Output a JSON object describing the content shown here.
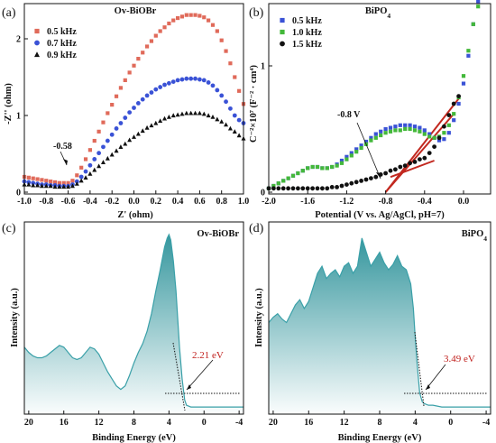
{
  "chart_data": [
    {
      "type": "scatter",
      "panel_label": "(a)",
      "title": "Ov-BiOBr",
      "xlabel": "Z' (ohm)",
      "ylabel": "-Z'' (ohm)",
      "xlim": [
        -1.0,
        1.0
      ],
      "ylim": [
        0,
        2.4
      ],
      "xticks": [
        -1.0,
        -0.8,
        -0.6,
        -0.4,
        -0.2,
        0.0,
        0.2,
        0.4,
        0.6,
        0.8,
        1.0
      ],
      "xtick_labels": [
        "-1.0",
        "-0.8",
        "-0.6",
        "-0.4",
        "-0.2",
        "0.0",
        "0.2",
        "0.4",
        "0.6",
        "0.8",
        "1.0"
      ],
      "yticks": [
        0,
        1,
        2
      ],
      "ytick_labels": [
        "0",
        "1",
        "2"
      ],
      "legend_position": "top-left",
      "annotation": "-0.58",
      "series": [
        {
          "name": "0.5 kHz",
          "color": "#e06a5a",
          "marker": "square",
          "x": [
            -1.0,
            -0.96,
            -0.92,
            -0.88,
            -0.84,
            -0.8,
            -0.76,
            -0.72,
            -0.68,
            -0.64,
            -0.6,
            -0.56,
            -0.52,
            -0.48,
            -0.44,
            -0.4,
            -0.36,
            -0.32,
            -0.28,
            -0.24,
            -0.2,
            -0.16,
            -0.12,
            -0.08,
            -0.04,
            0.0,
            0.04,
            0.08,
            0.12,
            0.16,
            0.2,
            0.24,
            0.28,
            0.32,
            0.36,
            0.4,
            0.44,
            0.48,
            0.52,
            0.56,
            0.6,
            0.64,
            0.68,
            0.72,
            0.76,
            0.8,
            0.84,
            0.88,
            0.92,
            0.96,
            1.0
          ],
          "y": [
            0.2,
            0.19,
            0.18,
            0.17,
            0.16,
            0.15,
            0.14,
            0.13,
            0.12,
            0.12,
            0.12,
            0.15,
            0.22,
            0.32,
            0.43,
            0.55,
            0.67,
            0.79,
            0.91,
            1.03,
            1.14,
            1.25,
            1.36,
            1.46,
            1.56,
            1.65,
            1.74,
            1.82,
            1.9,
            1.97,
            2.04,
            2.1,
            2.15,
            2.2,
            2.24,
            2.27,
            2.29,
            2.31,
            2.31,
            2.31,
            2.3,
            2.28,
            2.24,
            2.18,
            2.1,
            1.98,
            1.84,
            1.68,
            1.5,
            1.32,
            1.15
          ]
        },
        {
          "name": "0.7 kHz",
          "color": "#3a52d6",
          "marker": "circle",
          "x": [
            -1.0,
            -0.96,
            -0.92,
            -0.88,
            -0.84,
            -0.8,
            -0.76,
            -0.72,
            -0.68,
            -0.64,
            -0.6,
            -0.56,
            -0.52,
            -0.48,
            -0.44,
            -0.4,
            -0.36,
            -0.32,
            -0.28,
            -0.24,
            -0.2,
            -0.16,
            -0.12,
            -0.08,
            -0.04,
            0.0,
            0.04,
            0.08,
            0.12,
            0.16,
            0.2,
            0.24,
            0.28,
            0.32,
            0.36,
            0.4,
            0.44,
            0.48,
            0.52,
            0.56,
            0.6,
            0.64,
            0.68,
            0.72,
            0.76,
            0.8,
            0.84,
            0.88,
            0.92,
            0.96,
            1.0
          ],
          "y": [
            0.14,
            0.13,
            0.12,
            0.11,
            0.1,
            0.1,
            0.09,
            0.09,
            0.08,
            0.08,
            0.08,
            0.1,
            0.14,
            0.2,
            0.27,
            0.35,
            0.43,
            0.51,
            0.59,
            0.67,
            0.75,
            0.83,
            0.9,
            0.97,
            1.04,
            1.1,
            1.16,
            1.21,
            1.26,
            1.3,
            1.34,
            1.37,
            1.4,
            1.42,
            1.44,
            1.46,
            1.47,
            1.48,
            1.48,
            1.48,
            1.47,
            1.46,
            1.43,
            1.39,
            1.33,
            1.26,
            1.18,
            1.09,
            1.0,
            0.94,
            0.9
          ]
        },
        {
          "name": "0.9 kHz",
          "color": "#111111",
          "marker": "triangle",
          "x": [
            -1.0,
            -0.96,
            -0.92,
            -0.88,
            -0.84,
            -0.8,
            -0.76,
            -0.72,
            -0.68,
            -0.64,
            -0.6,
            -0.56,
            -0.52,
            -0.48,
            -0.44,
            -0.4,
            -0.36,
            -0.32,
            -0.28,
            -0.24,
            -0.2,
            -0.16,
            -0.12,
            -0.08,
            -0.04,
            0.0,
            0.04,
            0.08,
            0.12,
            0.16,
            0.2,
            0.24,
            0.28,
            0.32,
            0.36,
            0.4,
            0.44,
            0.48,
            0.52,
            0.56,
            0.6,
            0.64,
            0.68,
            0.72,
            0.76,
            0.8,
            0.84,
            0.88,
            0.92,
            0.96,
            1.0
          ],
          "y": [
            0.1,
            0.1,
            0.09,
            0.09,
            0.08,
            0.08,
            0.08,
            0.07,
            0.07,
            0.07,
            0.07,
            0.08,
            0.11,
            0.15,
            0.19,
            0.24,
            0.29,
            0.34,
            0.39,
            0.44,
            0.49,
            0.54,
            0.59,
            0.63,
            0.68,
            0.72,
            0.76,
            0.8,
            0.84,
            0.87,
            0.9,
            0.93,
            0.96,
            0.98,
            1.0,
            1.01,
            1.02,
            1.03,
            1.03,
            1.03,
            1.03,
            1.02,
            1.0,
            0.98,
            0.95,
            0.92,
            0.88,
            0.83,
            0.79,
            0.74,
            0.7
          ]
        }
      ]
    },
    {
      "type": "scatter",
      "panel_label": "(b)",
      "title": "BiPO4",
      "title_main": "BiPO",
      "title_sub": "4",
      "xlabel": "Potential (V vs. Ag/AgCl, pH=7)",
      "ylabel": "C⁻²×10⁷ (F⁻² · cm⁴)",
      "xlim": [
        -2.0,
        0.2
      ],
      "ylim": [
        0,
        1.5
      ],
      "xticks": [
        -2.0,
        -1.6,
        -1.2,
        -0.8,
        -0.4,
        0.0
      ],
      "xtick_labels": [
        "-2.0",
        "-1.6",
        "-1.2",
        "-0.8",
        "-0.4",
        "0.0"
      ],
      "yticks": [
        0,
        1
      ],
      "ytick_labels": [
        "0",
        "1"
      ],
      "legend_position": "top-left",
      "annotation": "-0.8 V",
      "series": [
        {
          "name": "0.5 kHz",
          "color": "#3a52d6",
          "marker": "square",
          "x": [
            -2.0,
            -1.95,
            -1.9,
            -1.85,
            -1.8,
            -1.75,
            -1.7,
            -1.65,
            -1.6,
            -1.55,
            -1.5,
            -1.45,
            -1.4,
            -1.35,
            -1.3,
            -1.25,
            -1.2,
            -1.15,
            -1.1,
            -1.05,
            -1.0,
            -0.95,
            -0.9,
            -0.85,
            -0.8,
            -0.75,
            -0.7,
            -0.65,
            -0.6,
            -0.55,
            -0.5,
            -0.45,
            -0.4,
            -0.35,
            -0.3,
            -0.25,
            -0.2,
            -0.15,
            -0.1,
            -0.05,
            0.0,
            0.05,
            0.1,
            0.15
          ],
          "y": [
            0.03,
            0.05,
            0.07,
            0.09,
            0.11,
            0.13,
            0.15,
            0.17,
            0.19,
            0.2,
            0.2,
            0.19,
            0.19,
            0.2,
            0.22,
            0.25,
            0.28,
            0.31,
            0.34,
            0.37,
            0.4,
            0.43,
            0.46,
            0.48,
            0.5,
            0.51,
            0.52,
            0.53,
            0.53,
            0.53,
            0.52,
            0.51,
            0.49,
            0.46,
            0.43,
            0.41,
            0.42,
            0.47,
            0.57,
            0.7,
            0.86,
            1.08,
            1.33,
            1.51
          ]
        },
        {
          "name": "1.0 kHz",
          "color": "#43b83a",
          "marker": "square",
          "x": [
            -2.0,
            -1.95,
            -1.9,
            -1.85,
            -1.8,
            -1.75,
            -1.7,
            -1.65,
            -1.6,
            -1.55,
            -1.5,
            -1.45,
            -1.4,
            -1.35,
            -1.3,
            -1.25,
            -1.2,
            -1.15,
            -1.1,
            -1.05,
            -1.0,
            -0.95,
            -0.9,
            -0.85,
            -0.8,
            -0.75,
            -0.7,
            -0.65,
            -0.6,
            -0.55,
            -0.5,
            -0.45,
            -0.4,
            -0.35,
            -0.3,
            -0.25,
            -0.2,
            -0.15,
            -0.1,
            -0.05,
            0.0,
            0.05,
            0.1,
            0.15
          ],
          "y": [
            0.03,
            0.05,
            0.07,
            0.09,
            0.11,
            0.13,
            0.15,
            0.17,
            0.19,
            0.2,
            0.2,
            0.19,
            0.19,
            0.2,
            0.21,
            0.23,
            0.26,
            0.29,
            0.32,
            0.35,
            0.38,
            0.41,
            0.43,
            0.45,
            0.47,
            0.48,
            0.49,
            0.49,
            0.5,
            0.5,
            0.49,
            0.48,
            0.46,
            0.44,
            0.43,
            0.44,
            0.47,
            0.53,
            0.62,
            0.75,
            0.92,
            1.12,
            1.33,
            1.47
          ]
        },
        {
          "name": "1.5 kHz",
          "color": "#111111",
          "marker": "circle",
          "x": [
            -2.0,
            -1.95,
            -1.9,
            -1.85,
            -1.8,
            -1.75,
            -1.7,
            -1.65,
            -1.6,
            -1.55,
            -1.5,
            -1.45,
            -1.4,
            -1.35,
            -1.3,
            -1.25,
            -1.2,
            -1.15,
            -1.1,
            -1.05,
            -1.0,
            -0.95,
            -0.9,
            -0.85,
            -0.8,
            -0.75,
            -0.7,
            -0.65,
            -0.6,
            -0.55,
            -0.5,
            -0.45,
            -0.4,
            -0.35,
            -0.3,
            -0.25,
            -0.2,
            -0.15,
            -0.1,
            -0.05
          ],
          "y": [
            0.03,
            0.03,
            0.03,
            0.03,
            0.03,
            0.03,
            0.03,
            0.03,
            0.03,
            0.03,
            0.03,
            0.03,
            0.03,
            0.04,
            0.04,
            0.05,
            0.06,
            0.07,
            0.08,
            0.09,
            0.1,
            0.11,
            0.12,
            0.14,
            0.15,
            0.17,
            0.18,
            0.2,
            0.21,
            0.23,
            0.24,
            0.26,
            0.27,
            0.31,
            0.36,
            0.43,
            0.52,
            0.61,
            0.7,
            0.76
          ]
        }
      ],
      "fit_lines": [
        {
          "color": "#c2281f",
          "x": [
            -0.8,
            -0.05
          ],
          "y": [
            0.0,
            0.74
          ]
        },
        {
          "color": "#c2281f",
          "x": [
            -0.8,
            -0.1
          ],
          "y": [
            0.0,
            0.62
          ]
        },
        {
          "color": "#c2281f",
          "x": [
            -0.75,
            -0.3
          ],
          "y": [
            0.12,
            0.25
          ]
        }
      ]
    },
    {
      "type": "area",
      "panel_label": "(c)",
      "title": "Ov-BiOBr",
      "xlabel": "Binding Energy (eV)",
      "ylabel": "Intensity (a.u.)",
      "xlim": [
        20.5,
        -4.5
      ],
      "ylim": [
        0,
        1.0
      ],
      "xticks": [
        20,
        16,
        12,
        8,
        4,
        0,
        -4
      ],
      "xtick_labels": [
        "20",
        "16",
        "12",
        "8",
        "4",
        "0",
        "-4"
      ],
      "annotation": "2.21 eV",
      "color": "#3aa0a8",
      "x": [
        20.5,
        20,
        19.5,
        19,
        18.5,
        18,
        17.5,
        17,
        16.5,
        16,
        15.5,
        15,
        14.5,
        14,
        13.5,
        13,
        12.5,
        12,
        11.5,
        11,
        10.5,
        10,
        9.5,
        9,
        8.5,
        8,
        7.5,
        7,
        6.5,
        6,
        5.5,
        5,
        4.5,
        4.2,
        4,
        3.8,
        3.5,
        3.2,
        3,
        2.8,
        2.5,
        2.21,
        2,
        1.5,
        1,
        0,
        -1,
        -2,
        -3,
        -4,
        -4.5
      ],
      "y": [
        0.36,
        0.33,
        0.31,
        0.3,
        0.3,
        0.31,
        0.33,
        0.35,
        0.37,
        0.36,
        0.33,
        0.3,
        0.29,
        0.3,
        0.33,
        0.36,
        0.35,
        0.32,
        0.27,
        0.22,
        0.18,
        0.14,
        0.12,
        0.14,
        0.2,
        0.27,
        0.33,
        0.38,
        0.45,
        0.55,
        0.68,
        0.8,
        0.93,
        0.98,
        1.0,
        0.97,
        0.85,
        0.68,
        0.52,
        0.36,
        0.18,
        0.06,
        0.03,
        0.02,
        0.02,
        0.02,
        0.02,
        0.02,
        0.02,
        0.02,
        0.02
      ]
    },
    {
      "type": "area",
      "panel_label": "(d)",
      "title": "BiPO4",
      "title_main": "BiPO",
      "title_sub": "4",
      "xlabel": "Binding Energy (eV)",
      "ylabel": "Intensity (a.u.)",
      "xlim": [
        20.5,
        -4.5
      ],
      "ylim": [
        0,
        1.0
      ],
      "xticks": [
        20,
        16,
        12,
        8,
        4,
        0,
        -4
      ],
      "xtick_labels": [
        "20",
        "16",
        "12",
        "8",
        "4",
        "0",
        "-4"
      ],
      "annotation": "3.49 eV",
      "color": "#3aa0a8",
      "x": [
        20.5,
        20,
        19.5,
        19,
        18.5,
        18,
        17.5,
        17,
        16.5,
        16,
        15.5,
        15,
        14.5,
        14,
        13.5,
        13,
        12.5,
        12,
        11.5,
        11,
        10.5,
        10,
        9.5,
        9,
        8.5,
        8,
        7.5,
        7,
        6.5,
        6,
        5.5,
        5,
        4.5,
        4.2,
        4,
        3.8,
        3.49,
        3.2,
        3,
        2.5,
        2,
        1,
        0,
        -1,
        -2,
        -3,
        -4,
        -4.5
      ],
      "y": [
        0.5,
        0.53,
        0.55,
        0.52,
        0.5,
        0.55,
        0.6,
        0.63,
        0.58,
        0.62,
        0.7,
        0.78,
        0.82,
        0.75,
        0.78,
        0.8,
        0.76,
        0.82,
        0.84,
        0.78,
        0.82,
        0.98,
        0.9,
        0.82,
        0.86,
        0.9,
        0.84,
        0.8,
        0.83,
        0.88,
        0.82,
        0.8,
        0.72,
        0.58,
        0.42,
        0.28,
        0.1,
        0.05,
        0.04,
        0.03,
        0.03,
        0.02,
        0.02,
        0.02,
        0.02,
        0.02,
        0.02,
        0.02
      ]
    }
  ]
}
